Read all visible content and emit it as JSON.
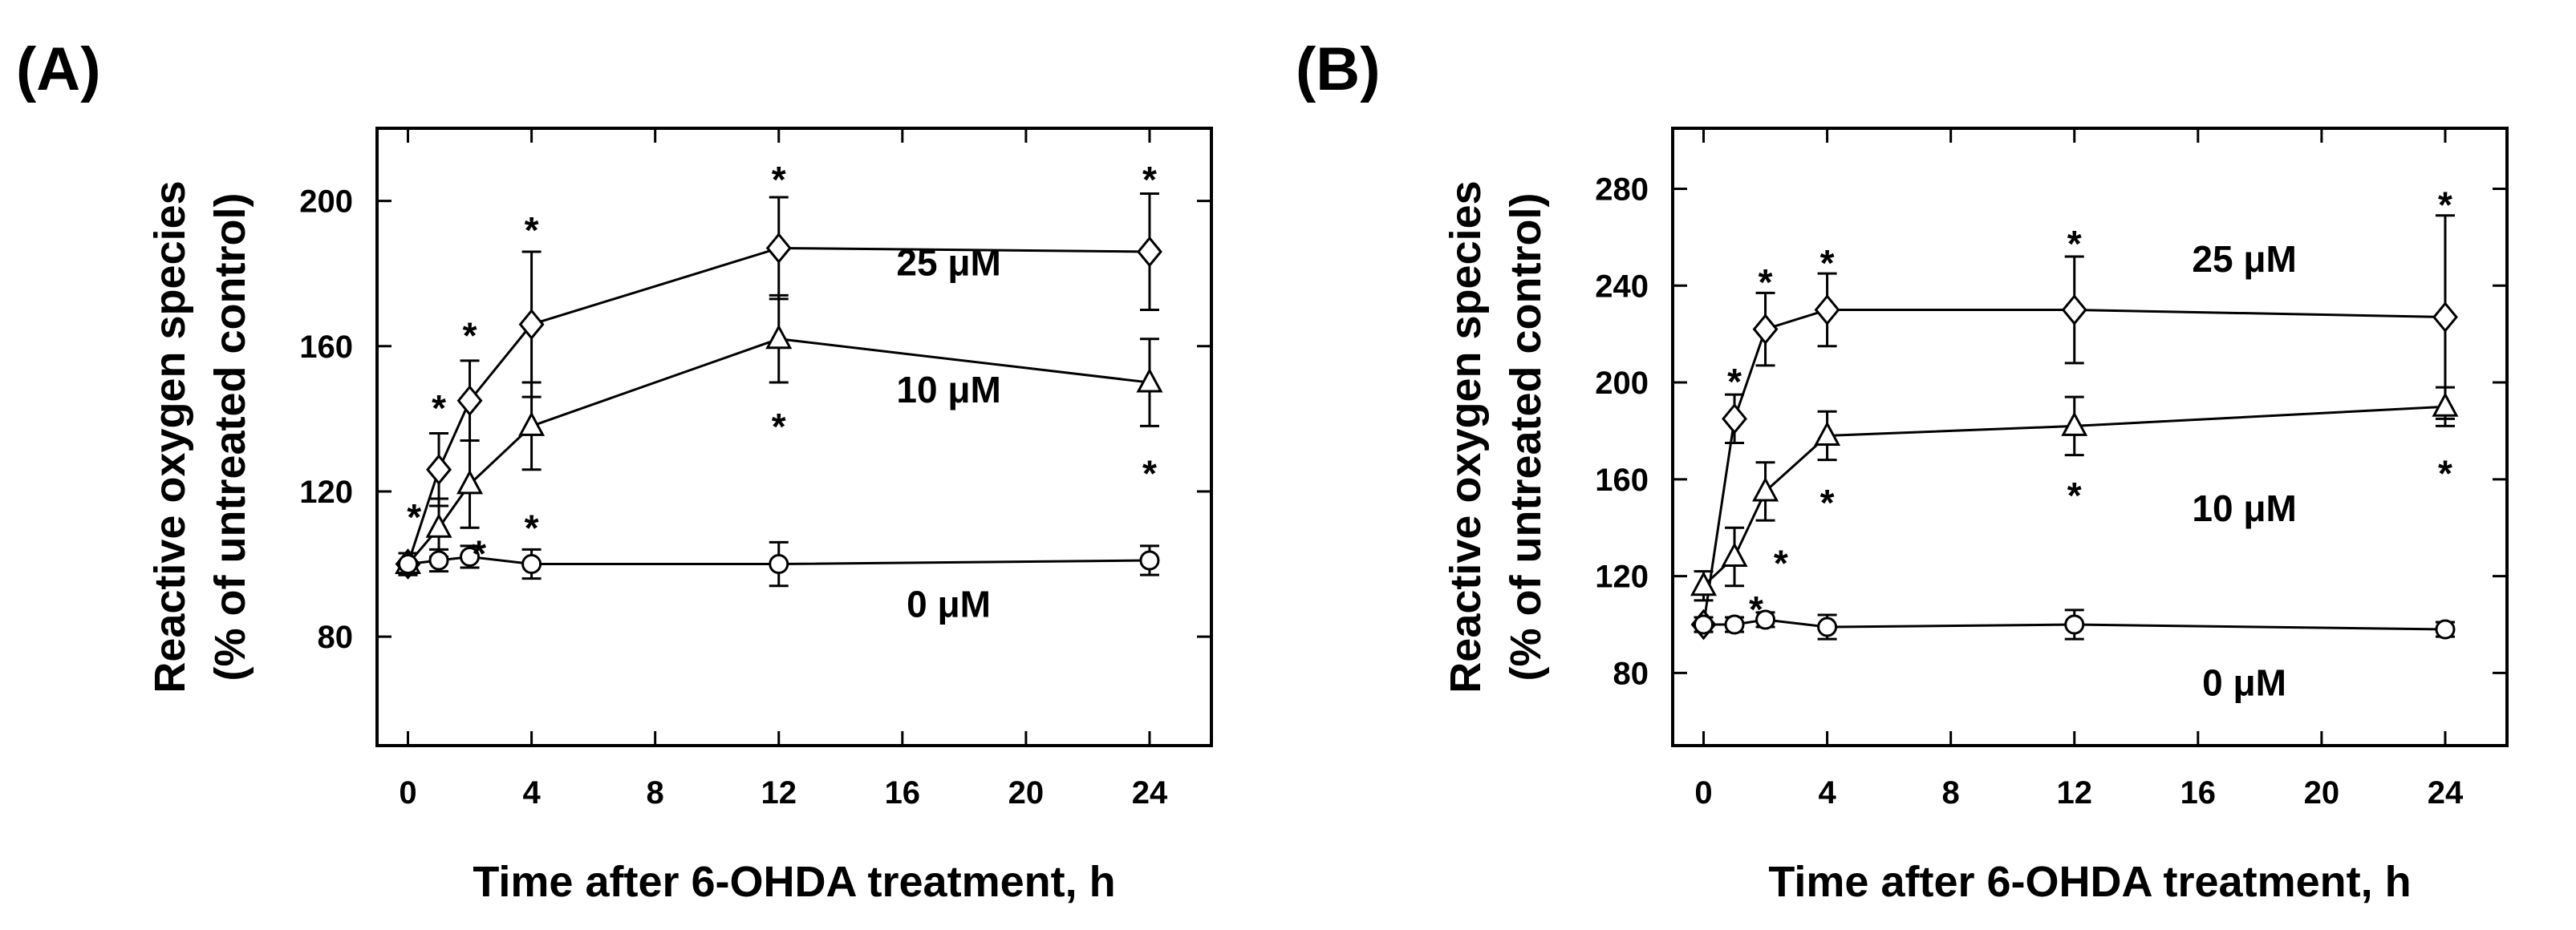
{
  "chart_data": [
    {
      "type": "line",
      "panel_label": "(A)",
      "xlabel": "Time after 6-OHDA treatment, h",
      "ylabel_line1": "Reactive oxygen species",
      "ylabel_line2": "(% of untreated control)",
      "xlim": [
        -1,
        26
      ],
      "ylim": [
        50,
        220
      ],
      "xticks": [
        0,
        4,
        8,
        12,
        16,
        20,
        24
      ],
      "yticks": [
        80,
        120,
        160,
        200
      ],
      "x": [
        0,
        1,
        2,
        4,
        12,
        24
      ],
      "series": [
        {
          "name": "25 μM",
          "marker": "diamond",
          "values": [
            100,
            126,
            145,
            166,
            187,
            186
          ],
          "errors": [
            3,
            10,
            11,
            20,
            14,
            16
          ]
        },
        {
          "name": "10 μM",
          "marker": "triangle",
          "values": [
            100,
            110,
            122,
            138,
            162,
            150
          ],
          "errors": [
            3,
            8,
            12,
            12,
            12,
            12
          ]
        },
        {
          "name": "0 μM",
          "marker": "circle",
          "values": [
            100,
            101,
            102,
            100,
            100,
            101
          ],
          "errors": [
            3,
            3,
            3,
            4,
            6,
            4
          ]
        }
      ],
      "annotations": [
        {
          "text": "*",
          "x": 1,
          "y": 146
        },
        {
          "text": "*",
          "x": 2,
          "y": 166
        },
        {
          "text": "*",
          "x": 4,
          "y": 195
        },
        {
          "text": "*",
          "x": 12,
          "y": 209
        },
        {
          "text": "*",
          "x": 24,
          "y": 209
        },
        {
          "text": "*",
          "x": 0.2,
          "y": 116
        },
        {
          "text": "*",
          "x": 2.3,
          "y": 106
        },
        {
          "text": "*",
          "x": 4,
          "y": 113
        },
        {
          "text": "*",
          "x": 12,
          "y": 141
        },
        {
          "text": "*",
          "x": 24,
          "y": 128
        }
      ],
      "series_labels": [
        {
          "text": "25 μM",
          "x": 17.5,
          "y": 183
        },
        {
          "text": "10 μM",
          "x": 17.5,
          "y": 148
        },
        {
          "text": "0 μM",
          "x": 17.5,
          "y": 89
        }
      ]
    },
    {
      "type": "line",
      "panel_label": "(B)",
      "xlabel": "Time after 6-OHDA treatment, h",
      "ylabel_line1": "Reactive oxygen species",
      "ylabel_line2": "(% of untreated control)",
      "xlim": [
        -1,
        26
      ],
      "ylim": [
        50,
        305
      ],
      "xticks": [
        0,
        4,
        8,
        12,
        16,
        20,
        24
      ],
      "yticks": [
        80,
        120,
        160,
        200,
        240,
        280
      ],
      "x": [
        0,
        1,
        2,
        4,
        12,
        24
      ],
      "series": [
        {
          "name": "25 μM",
          "marker": "diamond",
          "values": [
            100,
            185,
            222,
            230,
            230,
            227
          ],
          "errors": [
            3,
            10,
            15,
            15,
            22,
            42
          ]
        },
        {
          "name": "10 μM",
          "marker": "triangle",
          "values": [
            116,
            128,
            155,
            178,
            182,
            190
          ],
          "errors": [
            6,
            12,
            12,
            10,
            12,
            8
          ]
        },
        {
          "name": "0 μM",
          "marker": "circle",
          "values": [
            100,
            100,
            102,
            99,
            100,
            98
          ],
          "errors": [
            3,
            3,
            3,
            5,
            6,
            3
          ]
        }
      ],
      "annotations": [
        {
          "text": "*",
          "x": 1,
          "y": 205
        },
        {
          "text": "*",
          "x": 2,
          "y": 246
        },
        {
          "text": "*",
          "x": 4,
          "y": 254
        },
        {
          "text": "*",
          "x": 12,
          "y": 262
        },
        {
          "text": "*",
          "x": 24,
          "y": 278
        },
        {
          "text": "*",
          "x": 1.7,
          "y": 111
        },
        {
          "text": "*",
          "x": 2.5,
          "y": 130
        },
        {
          "text": "*",
          "x": 4,
          "y": 155
        },
        {
          "text": "*",
          "x": 12,
          "y": 158
        },
        {
          "text": "*",
          "x": 24,
          "y": 167
        }
      ],
      "series_labels": [
        {
          "text": "25 μM",
          "x": 17.5,
          "y": 251
        },
        {
          "text": "10 μM",
          "x": 17.5,
          "y": 148
        },
        {
          "text": "0 μM",
          "x": 17.5,
          "y": 76
        }
      ]
    }
  ]
}
